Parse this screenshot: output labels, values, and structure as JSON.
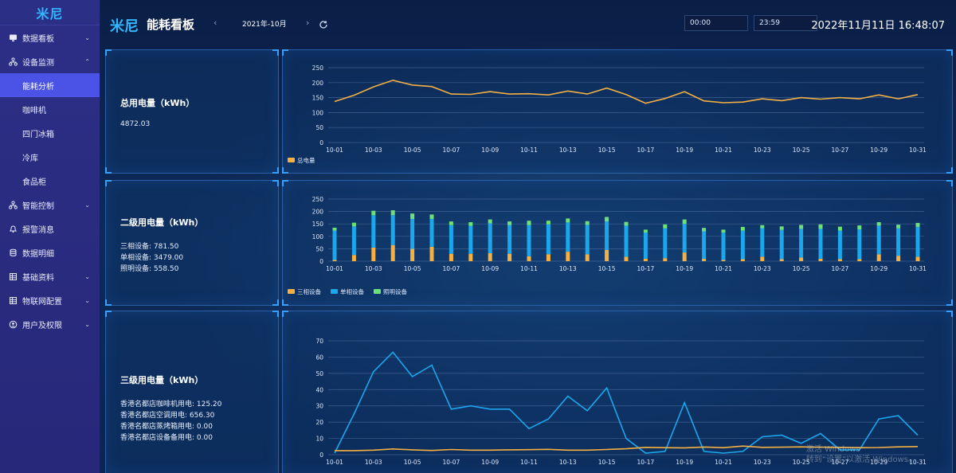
{
  "sidebar": {
    "logo": "米尼",
    "items": [
      {
        "label": "数据看板",
        "icon": "monitor-icon",
        "arrow": "⌄"
      },
      {
        "label": "设备监测",
        "icon": "sitemap-icon",
        "arrow": "⌃"
      }
    ],
    "sub_items": [
      {
        "label": "能耗分析",
        "active": true
      },
      {
        "label": "咖啡机",
        "active": false
      },
      {
        "label": "四门冰箱",
        "active": false
      },
      {
        "label": "冷库",
        "active": false
      },
      {
        "label": "食品柜",
        "active": false
      }
    ],
    "more_items": [
      {
        "label": "智能控制",
        "icon": "sitemap-icon",
        "arrow": "⌄"
      },
      {
        "label": "报警消息",
        "icon": "bell-icon",
        "arrow": ""
      },
      {
        "label": "数据明细",
        "icon": "database-icon",
        "arrow": ""
      },
      {
        "label": "基础资料",
        "icon": "table-icon",
        "arrow": "⌄"
      },
      {
        "label": "物联网配置",
        "icon": "table-icon",
        "arrow": "⌄"
      },
      {
        "label": "用户及权限",
        "icon": "user-circle-icon",
        "arrow": "⌄"
      }
    ]
  },
  "header": {
    "logo": "米尼",
    "title": "能耗看板",
    "month": "2021年-10月",
    "prev": "‹",
    "next": "›",
    "start_time": "00:00",
    "end_time": "23:59",
    "clock": "2022年11月11日 16:48:07"
  },
  "panels": {
    "total": {
      "title": "总用电量（kWh）",
      "value": "4872.03"
    },
    "level2": {
      "title": "二级用电量（kWh）",
      "lines": [
        "三相设备: 781.50",
        "单相设备: 3479.00",
        "照明设备: 558.50"
      ]
    },
    "level3": {
      "title": "三级用电量（kWh）",
      "lines": [
        "香港名都店咖啡机用电: 125.20",
        "香港名都店空调用电: 656.30",
        "香港名都店蒸烤箱用电: 0.00",
        "香港名都店设备备用电: 0.00"
      ]
    }
  },
  "watermark": {
    "line1": "激活 Windows",
    "line2": "转到“设置”以激活 Windows。"
  },
  "colors": {
    "orange": "#f5b041",
    "blue": "#1aa7ec",
    "green": "#6ee07a",
    "grid": "#4a6a9a"
  },
  "chart_data": [
    {
      "type": "line",
      "x": [
        "10-01",
        "10-02",
        "10-03",
        "10-04",
        "10-05",
        "10-06",
        "10-07",
        "10-08",
        "10-09",
        "10-10",
        "10-11",
        "10-12",
        "10-13",
        "10-14",
        "10-15",
        "10-16",
        "10-17",
        "10-18",
        "10-19",
        "10-20",
        "10-21",
        "10-22",
        "10-23",
        "10-24",
        "10-25",
        "10-26",
        "10-27",
        "10-28",
        "10-29",
        "10-30",
        "10-31"
      ],
      "xticks": [
        "10-01",
        "10-03",
        "10-05",
        "10-07",
        "10-09",
        "10-11",
        "10-13",
        "10-15",
        "10-17",
        "10-19",
        "10-21",
        "10-23",
        "10-25",
        "10-27",
        "10-29",
        "10-31"
      ],
      "series": [
        {
          "name": "总电量",
          "color": "#f5b041",
          "values": [
            137,
            158,
            186,
            208,
            192,
            187,
            162,
            161,
            170,
            162,
            163,
            159,
            172,
            162,
            182,
            160,
            131,
            147,
            170,
            139,
            133,
            135,
            146,
            140,
            150,
            145,
            150,
            146,
            159,
            146,
            160
          ]
        }
      ],
      "ylim": [
        0,
        250
      ],
      "yticks": [
        0,
        50,
        100,
        150,
        200,
        250
      ],
      "legend": "bottom-left"
    },
    {
      "type": "bar",
      "stacked": true,
      "x": [
        "10-01",
        "10-02",
        "10-03",
        "10-04",
        "10-05",
        "10-06",
        "10-07",
        "10-08",
        "10-09",
        "10-10",
        "10-11",
        "10-12",
        "10-13",
        "10-14",
        "10-15",
        "10-16",
        "10-17",
        "10-18",
        "10-19",
        "10-20",
        "10-21",
        "10-22",
        "10-23",
        "10-24",
        "10-25",
        "10-26",
        "10-27",
        "10-28",
        "10-29",
        "10-30",
        "10-31"
      ],
      "xticks": [
        "10-01",
        "10-03",
        "10-05",
        "10-07",
        "10-09",
        "10-11",
        "10-13",
        "10-15",
        "10-17",
        "10-19",
        "10-21",
        "10-23",
        "10-25",
        "10-27",
        "10-29",
        "10-31"
      ],
      "series": [
        {
          "name": "三相设备",
          "color": "#f5b041",
          "values": [
            5,
            25,
            55,
            65,
            50,
            58,
            30,
            30,
            32,
            30,
            20,
            28,
            38,
            28,
            45,
            18,
            10,
            12,
            35,
            10,
            5,
            8,
            18,
            8,
            15,
            10,
            8,
            8,
            28,
            22,
            18
          ]
        },
        {
          "name": "单相设备",
          "color": "#1aa7ec",
          "values": [
            118,
            115,
            130,
            120,
            120,
            112,
            115,
            112,
            120,
            115,
            125,
            120,
            118,
            118,
            115,
            125,
            105,
            120,
            115,
            110,
            110,
            115,
            115,
            118,
            115,
            120,
            115,
            120,
            115,
            110,
            120
          ]
        },
        {
          "name": "照明设备",
          "color": "#6ee07a",
          "values": [
            12,
            15,
            18,
            20,
            22,
            18,
            15,
            15,
            16,
            15,
            18,
            15,
            16,
            15,
            18,
            15,
            12,
            16,
            18,
            14,
            12,
            15,
            12,
            14,
            16,
            18,
            16,
            16,
            14,
            15,
            16
          ]
        }
      ],
      "ylim": [
        0,
        250
      ],
      "yticks": [
        0,
        50,
        100,
        150,
        200,
        250
      ],
      "legend": "bottom-left"
    },
    {
      "type": "line",
      "x": [
        "10-01",
        "10-02",
        "10-03",
        "10-04",
        "10-05",
        "10-06",
        "10-07",
        "10-08",
        "10-09",
        "10-10",
        "10-11",
        "10-12",
        "10-13",
        "10-14",
        "10-15",
        "10-16",
        "10-17",
        "10-18",
        "10-19",
        "10-20",
        "10-21",
        "10-22",
        "10-23",
        "10-24",
        "10-25",
        "10-26",
        "10-27",
        "10-28",
        "10-29",
        "10-30",
        "10-31"
      ],
      "xticks": [
        "10-01",
        "10-03",
        "10-05",
        "10-07",
        "10-09",
        "10-11",
        "10-13",
        "10-15",
        "10-17",
        "10-19",
        "10-21",
        "10-23",
        "10-25",
        "10-27",
        "10-29",
        "10-31"
      ],
      "series": [
        {
          "name": "",
          "color": "#1aa7ec",
          "values": [
            1,
            25,
            51,
            63,
            48,
            55,
            28,
            30,
            28,
            28,
            16,
            22,
            36,
            27,
            41,
            10,
            1,
            2,
            32,
            2,
            1,
            2,
            11,
            12,
            7,
            13,
            3,
            3,
            22,
            24,
            12
          ]
        },
        {
          "name": "",
          "color": "#f5b041",
          "values": [
            2.5,
            2.5,
            2.8,
            3.5,
            3,
            2.6,
            3.2,
            2.8,
            2.8,
            3,
            3.1,
            3.3,
            2.8,
            2.8,
            3.2,
            3.6,
            4.5,
            4.3,
            4.2,
            4.7,
            4.3,
            5.3,
            4.5,
            4.6,
            4.8,
            4.6,
            4.5,
            4.3,
            4.4,
            4.8,
            5
          ]
        }
      ],
      "ylim": [
        0,
        70
      ],
      "yticks": [
        0,
        10,
        20,
        30,
        40,
        50,
        60,
        70
      ]
    }
  ]
}
